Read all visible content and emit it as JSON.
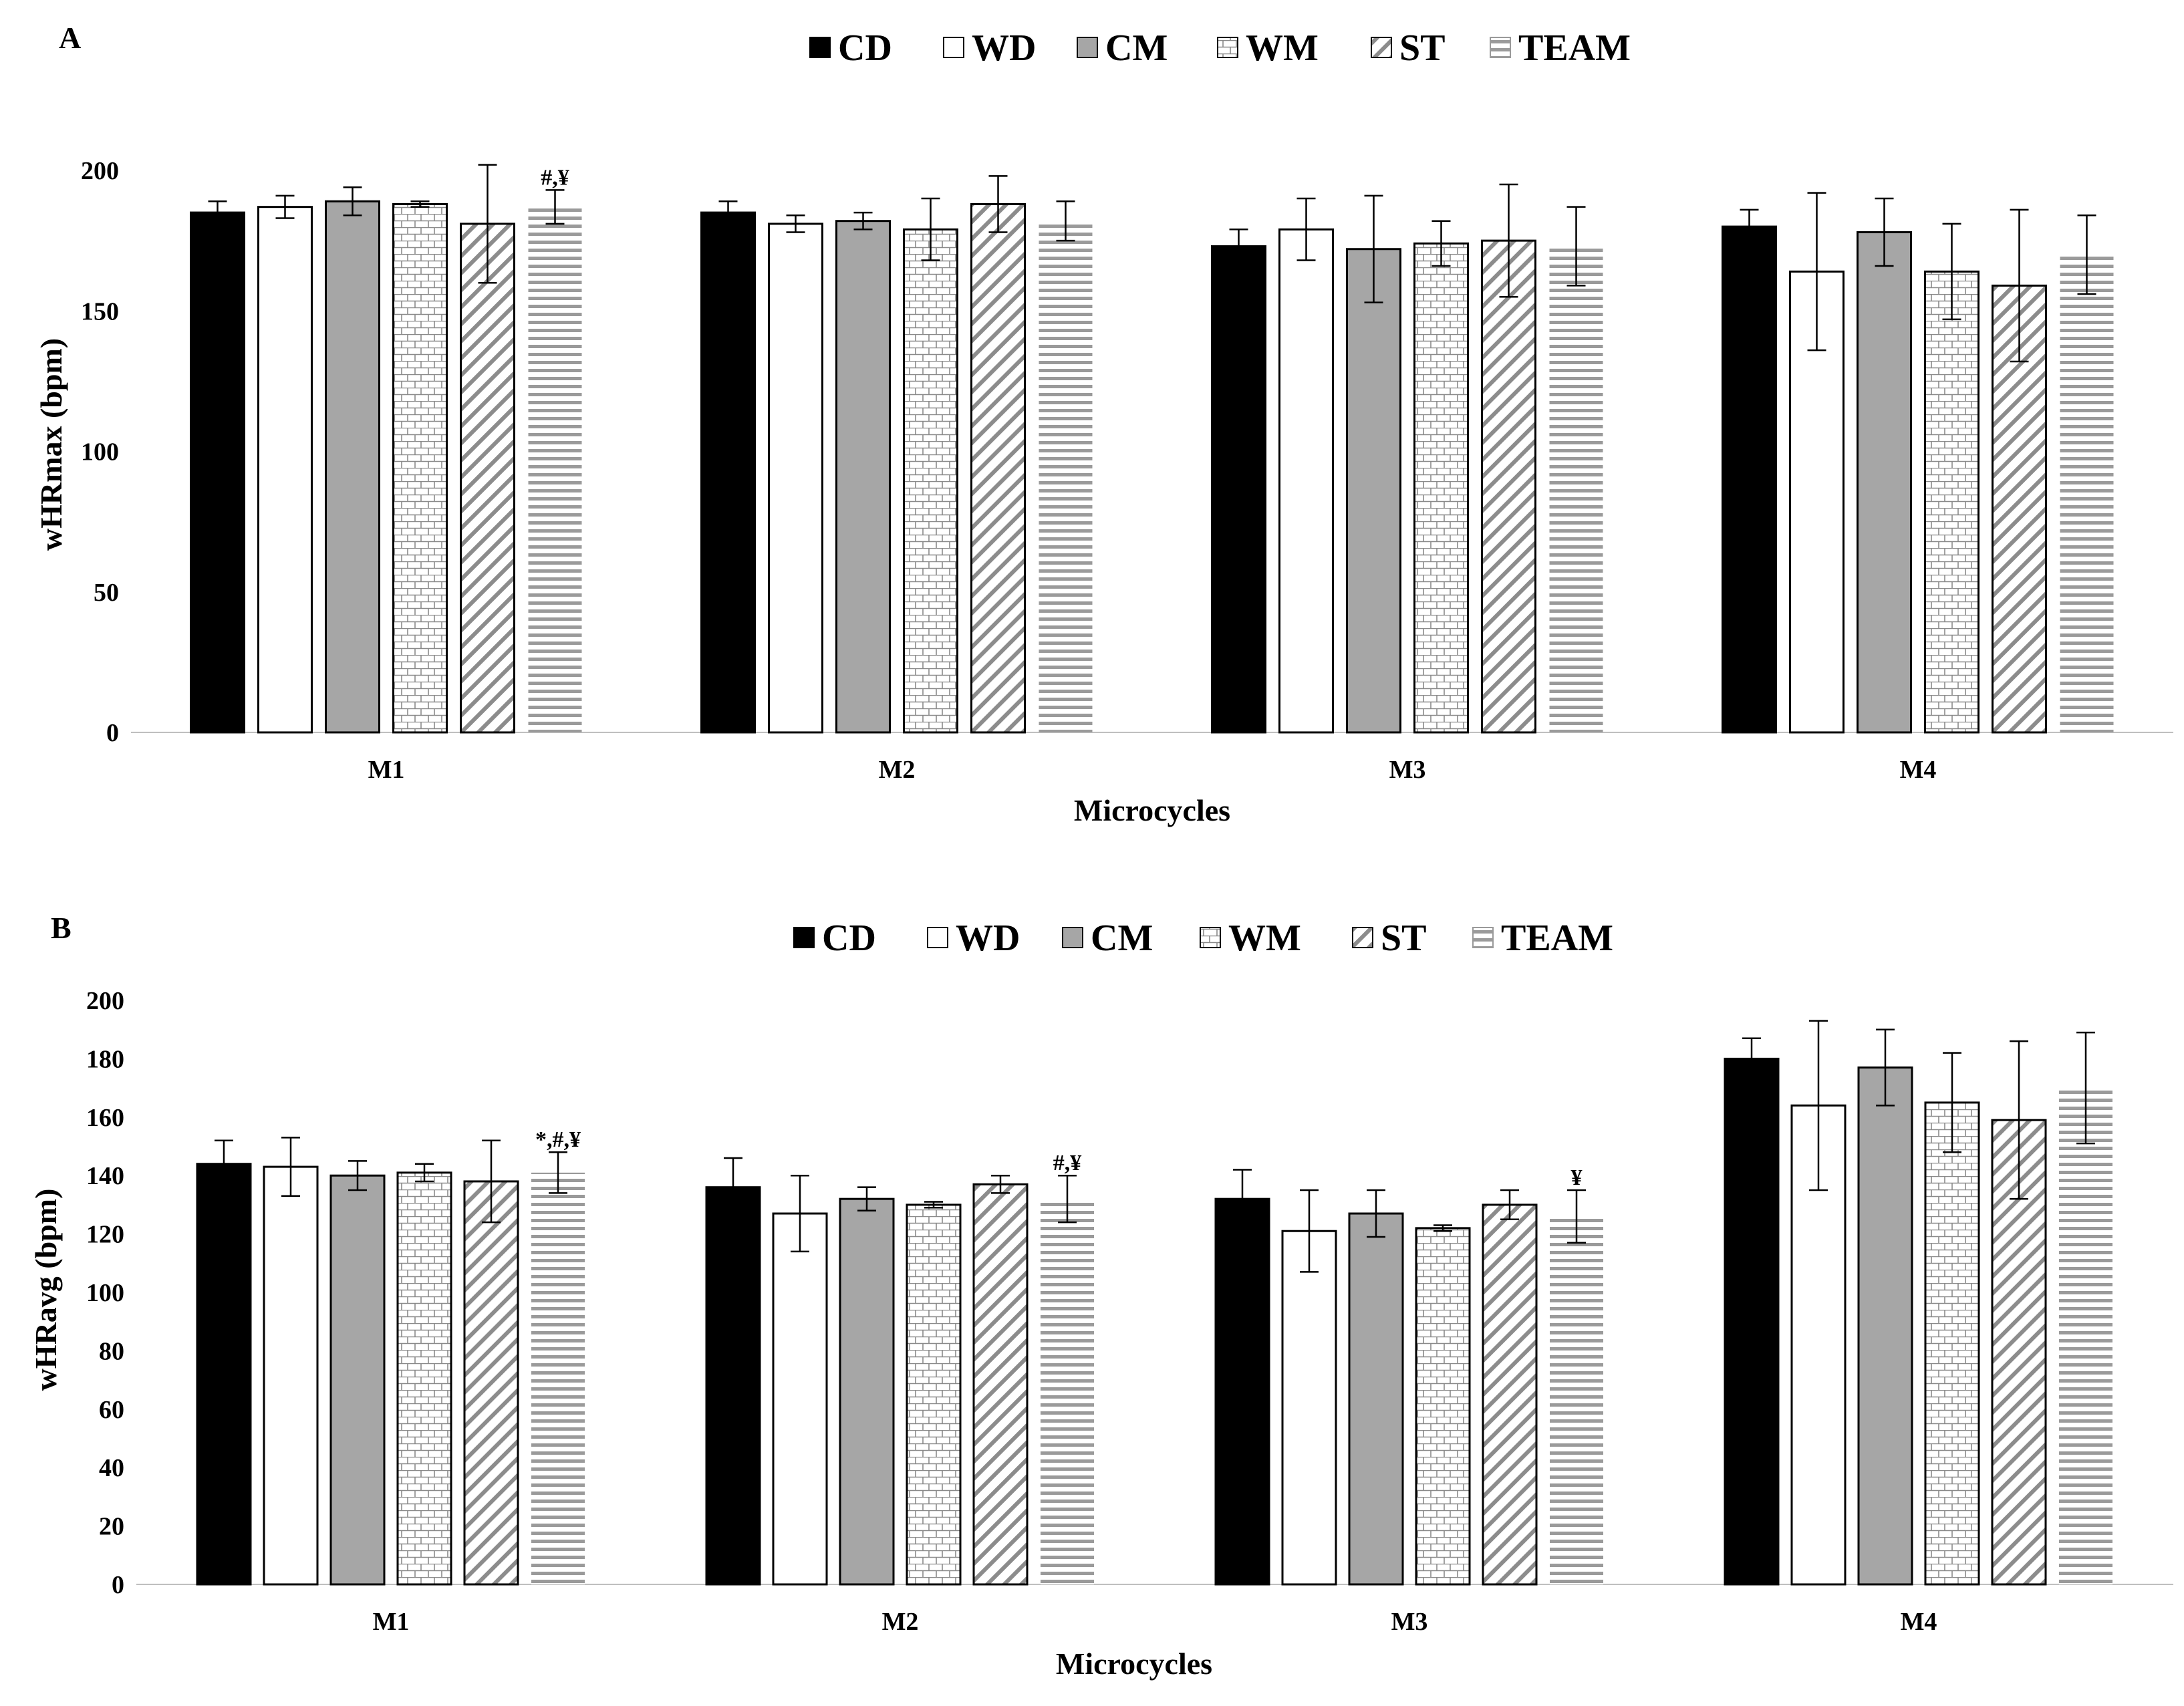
{
  "series_names": [
    "CD",
    "WD",
    "CM",
    "WM",
    "ST",
    "TEAM"
  ],
  "chart_data": [
    {
      "type": "bar",
      "panel_label": "A",
      "title": "",
      "xlabel": "Microcycles",
      "ylabel": "wHRmax (bpm)",
      "ylim": [
        0,
        200
      ],
      "yticks": [
        0,
        50,
        100,
        150,
        200
      ],
      "grid": false,
      "legend": "top-center",
      "categories": [
        "M1",
        "M2",
        "M3",
        "M4"
      ],
      "series": [
        {
          "name": "CD",
          "values": [
            185,
            185,
            173,
            180
          ],
          "errors": [
            4,
            4,
            6,
            6
          ]
        },
        {
          "name": "WD",
          "values": [
            187,
            181,
            179,
            164
          ],
          "errors": [
            4,
            3,
            11,
            28
          ]
        },
        {
          "name": "CM",
          "values": [
            189,
            182,
            172,
            178
          ],
          "errors": [
            5,
            3,
            19,
            12
          ]
        },
        {
          "name": "WM",
          "values": [
            188,
            179,
            174,
            164
          ],
          "errors": [
            1,
            11,
            8,
            17
          ]
        },
        {
          "name": "ST",
          "values": [
            181,
            188,
            175,
            159
          ],
          "errors": [
            21,
            10,
            20,
            27
          ]
        },
        {
          "name": "TEAM",
          "values": [
            187,
            182,
            173,
            170
          ],
          "errors": [
            6,
            7,
            14,
            14
          ]
        }
      ],
      "annotations": [
        {
          "category": "M1",
          "series": "TEAM",
          "text": "#,¥"
        }
      ]
    },
    {
      "type": "bar",
      "panel_label": "B",
      "title": "",
      "xlabel": "Microcycles",
      "ylabel": "wHRavg (bpm)",
      "ylim": [
        0,
        200
      ],
      "yticks": [
        0,
        20,
        40,
        60,
        80,
        100,
        120,
        140,
        160,
        180,
        200
      ],
      "grid": false,
      "legend": "top-center",
      "categories": [
        "M1",
        "M2",
        "M3",
        "M4"
      ],
      "series": [
        {
          "name": "CD",
          "values": [
            144,
            136,
            132,
            180
          ],
          "errors": [
            8,
            10,
            10,
            7
          ]
        },
        {
          "name": "WD",
          "values": [
            143,
            127,
            121,
            164
          ],
          "errors": [
            10,
            13,
            14,
            29
          ]
        },
        {
          "name": "CM",
          "values": [
            140,
            132,
            127,
            177
          ],
          "errors": [
            5,
            4,
            8,
            13
          ]
        },
        {
          "name": "WM",
          "values": [
            141,
            130,
            122,
            165
          ],
          "errors": [
            3,
            1,
            1,
            17
          ]
        },
        {
          "name": "ST",
          "values": [
            138,
            137,
            130,
            159
          ],
          "errors": [
            14,
            3,
            5,
            27
          ]
        },
        {
          "name": "TEAM",
          "values": [
            141,
            132,
            126,
            170
          ],
          "errors": [
            7,
            8,
            9,
            19
          ]
        }
      ],
      "annotations": [
        {
          "category": "M1",
          "series": "TEAM",
          "text": "*,#,¥"
        },
        {
          "category": "M2",
          "series": "TEAM",
          "text": "#,¥"
        },
        {
          "category": "M3",
          "series": "TEAM",
          "text": "¥"
        }
      ]
    }
  ]
}
